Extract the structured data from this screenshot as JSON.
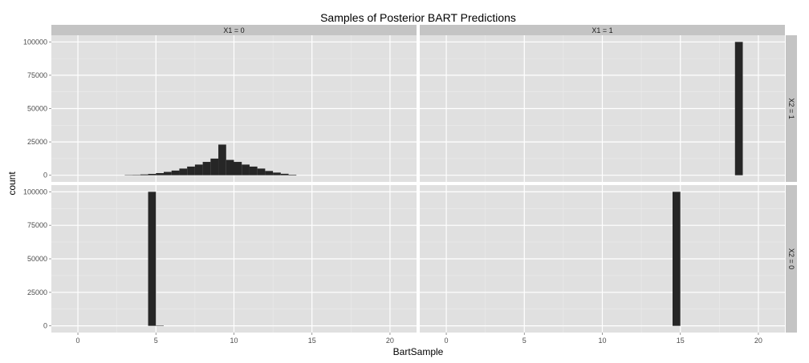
{
  "chart_data": {
    "type": "bar",
    "subtype": "faceted-histogram",
    "title": "Samples of Posterior BART Predictions",
    "xlabel": "BartSample",
    "ylabel": "count",
    "xlim": [
      -1.7,
      21.7
    ],
    "ylim": [
      -5000,
      105000
    ],
    "x_ticks": [
      0,
      5,
      10,
      15,
      20
    ],
    "y_ticks": [
      0,
      25000,
      50000,
      75000,
      100000
    ],
    "y_tick_labels": [
      "0",
      "25000",
      "50000",
      "75000",
      "100000"
    ],
    "bin_width": 0.5,
    "grid": true,
    "bar_color": "#262626",
    "panel_bg": "#e0e0e0",
    "strip_bg": "#c4c4c4",
    "columns": [
      "X1 = 0",
      "X1 = 1"
    ],
    "rows": [
      "X2 = 1",
      "X2 = 0"
    ],
    "panels": [
      {
        "col": "X1 = 0",
        "row": "X2 = 1",
        "bins": [
          {
            "x": 3.25,
            "count": 100
          },
          {
            "x": 3.75,
            "count": 300
          },
          {
            "x": 4.25,
            "count": 600
          },
          {
            "x": 4.75,
            "count": 1000
          },
          {
            "x": 5.25,
            "count": 1600
          },
          {
            "x": 5.75,
            "count": 2500
          },
          {
            "x": 6.25,
            "count": 3500
          },
          {
            "x": 6.75,
            "count": 5000
          },
          {
            "x": 7.25,
            "count": 6500
          },
          {
            "x": 7.75,
            "count": 8000
          },
          {
            "x": 8.25,
            "count": 10000
          },
          {
            "x": 8.75,
            "count": 12500
          },
          {
            "x": 9.25,
            "count": 23000
          },
          {
            "x": 9.75,
            "count": 11500
          },
          {
            "x": 10.25,
            "count": 10000
          },
          {
            "x": 10.75,
            "count": 8000
          },
          {
            "x": 11.25,
            "count": 6500
          },
          {
            "x": 11.75,
            "count": 5000
          },
          {
            "x": 12.25,
            "count": 3200
          },
          {
            "x": 12.75,
            "count": 2000
          },
          {
            "x": 13.25,
            "count": 1100
          },
          {
            "x": 13.75,
            "count": 400
          }
        ]
      },
      {
        "col": "X1 = 1",
        "row": "X2 = 1",
        "bins": [
          {
            "x": 18.75,
            "count": 100000
          }
        ]
      },
      {
        "col": "X1 = 0",
        "row": "X2 = 0",
        "bins": [
          {
            "x": 4.75,
            "count": 100000
          },
          {
            "x": 5.25,
            "count": 300
          }
        ]
      },
      {
        "col": "X1 = 1",
        "row": "X2 = 0",
        "bins": [
          {
            "x": 14.75,
            "count": 100000
          }
        ]
      }
    ]
  }
}
